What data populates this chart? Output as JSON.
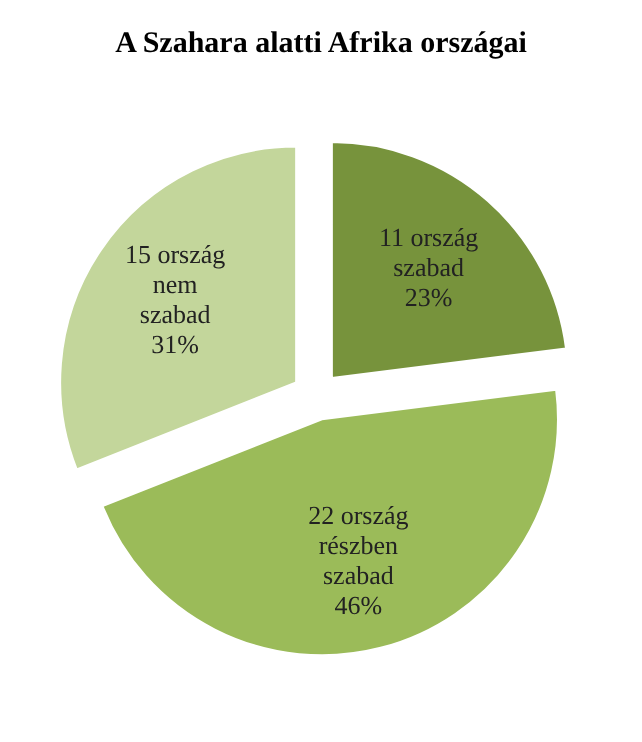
{
  "chart_data": {
    "type": "pie",
    "title": "A Szahara alatti Afrika országai",
    "categories": [
      "11 ország szabad",
      "22 ország részben szabad",
      "15 ország nem szabad"
    ],
    "values": [
      23,
      46,
      31
    ],
    "value_labels": [
      "23%",
      "46%",
      "31%"
    ],
    "colors": [
      "#77933c",
      "#9bbb59",
      "#c3d69b"
    ],
    "legend": false
  }
}
